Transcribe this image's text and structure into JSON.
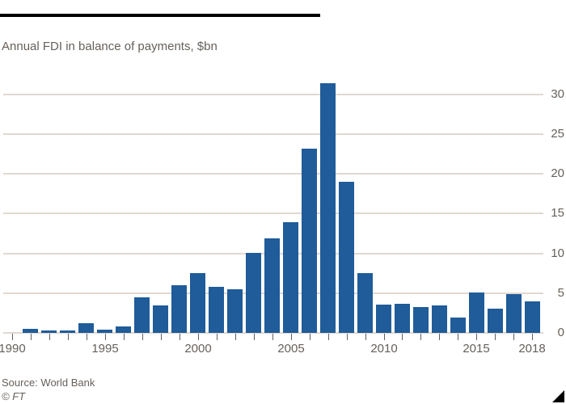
{
  "header": {
    "subtitle": "Annual FDI in balance of payments, $bn"
  },
  "footer": {
    "source": "Source: World Bank",
    "copyright": "© FT"
  },
  "colors": {
    "bar": "#1F5C99",
    "gridline": "#E1D8D0",
    "axis_text": "#66605B",
    "top_rule": "#000000",
    "corner_triangle": "#000000",
    "background": "#FFFFFF"
  },
  "chart_data": {
    "type": "bar",
    "title": "Annual FDI in balance of payments, $bn",
    "xlabel": "",
    "ylabel": "$bn",
    "x": [
      1990,
      1991,
      1992,
      1993,
      1994,
      1995,
      1996,
      1997,
      1998,
      1999,
      2000,
      2001,
      2002,
      2003,
      2004,
      2005,
      2006,
      2007,
      2008,
      2009,
      2010,
      2011,
      2012,
      2013,
      2014,
      2015,
      2016,
      2017,
      2018
    ],
    "values": [
      0,
      0.55,
      0.3,
      0.35,
      1.2,
      0.45,
      0.8,
      4.5,
      3.5,
      6.0,
      7.5,
      5.8,
      5.5,
      10.0,
      11.9,
      13.9,
      23.1,
      31.4,
      19.0,
      7.5,
      3.6,
      3.7,
      3.2,
      3.5,
      1.9,
      5.1,
      3.0,
      4.9,
      4.0
    ],
    "ylim": [
      0,
      32
    ],
    "yticks": [
      0,
      5,
      10,
      15,
      20,
      25,
      30
    ],
    "xticks": [
      1990,
      1995,
      2000,
      2005,
      2010,
      2015,
      2018
    ],
    "grid": true,
    "y_axis_side": "right",
    "legend": false
  }
}
